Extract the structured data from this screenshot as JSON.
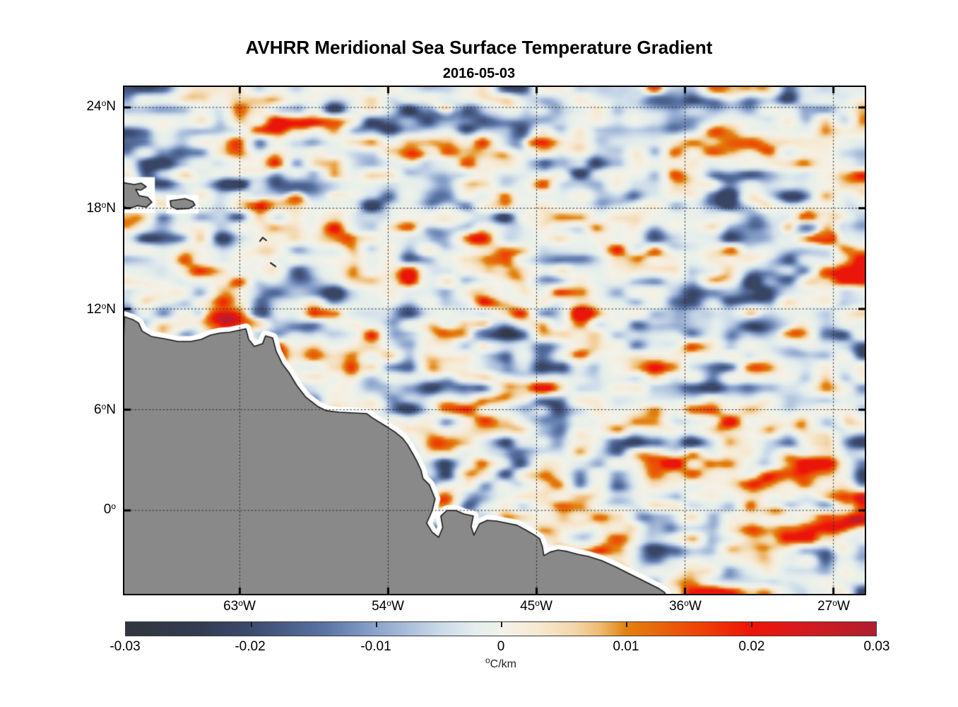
{
  "title": "AVHRR Meridional Sea Surface Temperature Gradient",
  "subtitle": "2016-05-03",
  "chart_data": {
    "type": "heatmap",
    "title": "AVHRR Meridional Sea Surface Temperature Gradient",
    "date": "2016-05-03",
    "description": "Satellite map of meridional SST gradient over the western tropical Atlantic and northeastern South America; gray = land, white = missing data near coast, dotted graticule, diverging colormap.",
    "axes": {
      "lon_range": [
        -70.0,
        -25.1
      ],
      "lat_range": [
        -4.97,
        25.22
      ],
      "grid": "dotted",
      "x": [
        {
          "value": -63,
          "num": "63",
          "deg": "o",
          "dir": "W"
        },
        {
          "value": -54,
          "num": "54",
          "deg": "o",
          "dir": "W"
        },
        {
          "value": -45,
          "num": "45",
          "deg": "o",
          "dir": "W"
        },
        {
          "value": -36,
          "num": "36",
          "deg": "o",
          "dir": "W"
        },
        {
          "value": -27,
          "num": "27",
          "deg": "o",
          "dir": "W"
        }
      ],
      "y": [
        {
          "value": 24,
          "num": "24",
          "deg": "o",
          "dir": "N"
        },
        {
          "value": 18,
          "num": "18",
          "deg": "o",
          "dir": "N"
        },
        {
          "value": 12,
          "num": "12",
          "deg": "o",
          "dir": "N"
        },
        {
          "value": 6,
          "num": "6",
          "deg": "o",
          "dir": "N"
        },
        {
          "value": 0,
          "num": "0",
          "deg": "o",
          "dir": ""
        }
      ]
    },
    "colorbar": {
      "range": [
        -0.03,
        0.03
      ],
      "unit_deg": "o",
      "unit_rest": "C/km",
      "ticks": [
        {
          "value": -0.03,
          "label": "-0.03"
        },
        {
          "value": -0.02,
          "label": "-0.02"
        },
        {
          "value": -0.01,
          "label": "-0.01"
        },
        {
          "value": 0,
          "label": "0"
        },
        {
          "value": 0.01,
          "label": "0.01"
        },
        {
          "value": 0.02,
          "label": "0.02"
        },
        {
          "value": 0.03,
          "label": "0.03"
        }
      ],
      "stops": [
        [
          -0.03,
          "#32353c"
        ],
        [
          -0.024,
          "#333c52"
        ],
        [
          -0.02,
          "#3c4a6e"
        ],
        [
          -0.014,
          "#5a74a5"
        ],
        [
          -0.01,
          "#8ba3cc"
        ],
        [
          -0.005,
          "#c9d8e9"
        ],
        [
          -0.002,
          "#e5eeee"
        ],
        [
          -0.0006,
          "#ebf1e9"
        ],
        [
          0.0,
          "#f4f2ea"
        ],
        [
          0.003,
          "#f7e9d2"
        ],
        [
          0.006,
          "#f3d5a8"
        ],
        [
          0.008,
          "#eeb96d"
        ],
        [
          0.01,
          "#e2830e"
        ],
        [
          0.013,
          "#e9610a"
        ],
        [
          0.016,
          "#ee4206"
        ],
        [
          0.02,
          "#ee1408"
        ],
        [
          0.024,
          "#d61a1e"
        ],
        [
          0.03,
          "#b01e2e"
        ]
      ]
    },
    "map": {
      "land_color": "#898989",
      "coast_outline": "#1a1a1a",
      "missing_data_color": "#ffffff",
      "grid_color": "#2a2a2a",
      "tick_color": "#000000",
      "coast_main": [
        [
          -70.0,
          11.54
        ],
        [
          -69.49,
          11.37
        ],
        [
          -69.14,
          11.16
        ],
        [
          -68.93,
          10.69
        ],
        [
          -68.37,
          10.36
        ],
        [
          -67.6,
          10.23
        ],
        [
          -66.75,
          10.06
        ],
        [
          -65.97,
          10.06
        ],
        [
          -65.33,
          10.19
        ],
        [
          -64.78,
          10.44
        ],
        [
          -64.18,
          10.57
        ],
        [
          -63.62,
          10.61
        ],
        [
          -62.63,
          10.82
        ],
        [
          -62.46,
          10.19
        ],
        [
          -62.12,
          9.77
        ],
        [
          -61.61,
          9.94
        ],
        [
          -61.44,
          10.4
        ],
        [
          -61.01,
          10.27
        ],
        [
          -60.79,
          9.47
        ],
        [
          -60.41,
          8.71
        ],
        [
          -60.02,
          8.21
        ],
        [
          -59.55,
          7.45
        ],
        [
          -58.99,
          6.74
        ],
        [
          -58.27,
          6.19
        ],
        [
          -57.75,
          5.94
        ],
        [
          -56.98,
          5.85
        ],
        [
          -56.12,
          5.81
        ],
        [
          -55.31,
          5.77
        ],
        [
          -54.97,
          5.52
        ],
        [
          -54.2,
          5.05
        ],
        [
          -53.6,
          4.68
        ],
        [
          -53.13,
          4.3
        ],
        [
          -52.83,
          3.92
        ],
        [
          -52.53,
          3.41
        ],
        [
          -52.27,
          2.95
        ],
        [
          -52.01,
          2.4
        ],
        [
          -51.89,
          1.9
        ],
        [
          -51.5,
          1.52
        ],
        [
          -51.16,
          0.68
        ],
        [
          -51.33,
          0.0
        ],
        [
          -51.67,
          -0.76
        ],
        [
          -51.33,
          -1.3
        ],
        [
          -50.94,
          -1.6
        ],
        [
          -50.69,
          -1.01
        ],
        [
          -50.81,
          -0.34
        ],
        [
          -50.43,
          0.0
        ],
        [
          -49.91,
          0.0
        ],
        [
          -49.4,
          -0.21
        ],
        [
          -48.84,
          -0.33
        ],
        [
          -48.97,
          -0.97
        ],
        [
          -48.8,
          -1.47
        ],
        [
          -48.46,
          -0.8
        ],
        [
          -47.99,
          -0.59
        ],
        [
          -47.43,
          -0.63
        ],
        [
          -46.79,
          -0.76
        ],
        [
          -46.19,
          -0.88
        ],
        [
          -45.63,
          -1.18
        ],
        [
          -45.12,
          -1.47
        ],
        [
          -44.82,
          -1.68
        ],
        [
          -44.65,
          -2.14
        ],
        [
          -44.56,
          -2.69
        ],
        [
          -44.18,
          -2.48
        ],
        [
          -43.7,
          -2.36
        ],
        [
          -43.15,
          -2.44
        ],
        [
          -42.51,
          -2.61
        ],
        [
          -41.86,
          -2.74
        ],
        [
          -41.05,
          -2.99
        ],
        [
          -40.19,
          -3.37
        ],
        [
          -39.34,
          -3.79
        ],
        [
          -38.48,
          -4.21
        ],
        [
          -37.62,
          -4.63
        ],
        [
          -37.24,
          -4.88
        ],
        [
          -37.0,
          -5.4
        ],
        [
          -70.5,
          -5.4
        ]
      ],
      "islands": [
        [
          [
            -70.2,
            19.54
          ],
          [
            -69.4,
            19.41
          ],
          [
            -68.97,
            19.49
          ],
          [
            -68.67,
            19.28
          ],
          [
            -69.01,
            19.07
          ],
          [
            -69.31,
            19.12
          ],
          [
            -69.1,
            18.74
          ],
          [
            -68.59,
            18.65
          ],
          [
            -68.33,
            18.36
          ],
          [
            -68.67,
            18.06
          ],
          [
            -69.23,
            18.15
          ],
          [
            -69.7,
            17.98
          ],
          [
            -70.2,
            18.15
          ]
        ],
        [
          [
            -67.22,
            18.44
          ],
          [
            -66.32,
            18.57
          ],
          [
            -65.85,
            18.4
          ],
          [
            -65.72,
            18.19
          ],
          [
            -66.06,
            17.98
          ],
          [
            -66.83,
            17.94
          ],
          [
            -67.17,
            18.11
          ]
        ]
      ],
      "island_halos": [
        [
          -70.3,
          19.85,
          -68.15,
          17.72
        ],
        [
          -67.45,
          18.78,
          -65.5,
          17.68
        ]
      ],
      "islets": [
        [
          [
            -61.78,
            16.04
          ],
          [
            -61.61,
            16.25
          ],
          [
            -61.39,
            16.08
          ]
        ],
        [
          [
            -61.13,
            14.74
          ],
          [
            -60.83,
            14.53
          ]
        ]
      ],
      "features": [
        {
          "lon": -63.92,
          "lat": 11.37,
          "amp": 0.03,
          "sx": 1.1,
          "sy": 0.5
        },
        {
          "lon": -52.48,
          "lat": 21.26,
          "amp": 0.018,
          "sx": 0.6,
          "sy": 0.25
        },
        {
          "lon": -44.77,
          "lat": 21.98,
          "amp": 0.02,
          "sx": 0.77,
          "sy": 0.21
        },
        {
          "lon": -56.25,
          "lat": 8.51,
          "amp": 0.016,
          "sx": 0.35,
          "sy": 0.35
        },
        {
          "lon": -41.35,
          "lat": 16.84,
          "amp": 0.014,
          "sx": 0.43,
          "sy": 0.21
        },
        {
          "lon": -26.57,
          "lat": 0.71,
          "amp": 0.02,
          "sx": 0.86,
          "sy": 0.34
        },
        {
          "lon": -25.63,
          "lat": -0.64,
          "amp": 0.018,
          "sx": 0.64,
          "sy": 0.25
        },
        {
          "lon": -30.42,
          "lat": -0.05,
          "amp": 0.015,
          "sx": 0.6,
          "sy": 0.25
        },
        {
          "lon": -59.55,
          "lat": 19.24,
          "amp": -0.018,
          "sx": 1.3,
          "sy": 0.42
        },
        {
          "lon": -50.99,
          "lat": 23.66,
          "amp": -0.016,
          "sx": 1.5,
          "sy": 0.42
        },
        {
          "lon": -37.28,
          "lat": 24.51,
          "amp": -0.017,
          "sx": 1.3,
          "sy": 0.42
        },
        {
          "lon": -28.29,
          "lat": 16.93,
          "amp": -0.016,
          "sx": 1.2,
          "sy": 0.5
        },
        {
          "lon": -47.99,
          "lat": 10.61,
          "amp": -0.014,
          "sx": 1.1,
          "sy": 0.42
        },
        {
          "lon": -31.28,
          "lat": 11.03,
          "amp": -0.015,
          "sx": 0.95,
          "sy": 0.42
        }
      ],
      "noise": {
        "seed": 1337,
        "coarse": [
          22,
          28
        ],
        "fine": [
          40,
          48
        ],
        "w1": 0.6,
        "w2": 0.4,
        "gain": 1.45,
        "scale": 0.021,
        "power": 1.6,
        "bias": -0.0004
      }
    }
  }
}
